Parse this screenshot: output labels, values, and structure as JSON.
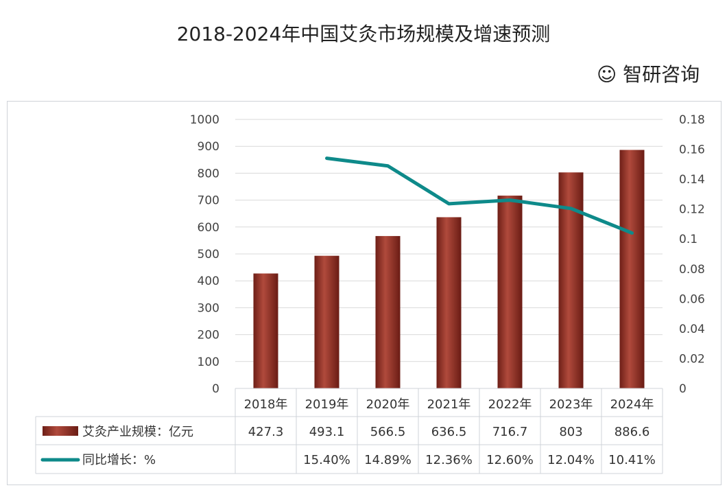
{
  "chart_data": {
    "type": "bar+line",
    "title": "2018-2024年中国艾灸市场规模及增速预测",
    "categories": [
      "2018年",
      "2019年",
      "2020年",
      "2021年",
      "2022年",
      "2023年",
      "2024年"
    ],
    "series": [
      {
        "name": "艾灸产业规模：亿元",
        "type": "bar",
        "axis": "left",
        "color": "#8b2e24",
        "values": [
          427.3,
          493.1,
          566.5,
          636.5,
          716.7,
          803,
          886.6
        ]
      },
      {
        "name": "同比增长：%",
        "type": "line",
        "axis": "right",
        "color": "#0e8a8a",
        "values": [
          null,
          0.154,
          0.1489,
          0.1236,
          0.126,
          0.1204,
          0.104
        ]
      }
    ],
    "left_axis": {
      "ylim": [
        0,
        1000
      ],
      "ticks": [
        "0",
        "100",
        "200",
        "300",
        "400",
        "500",
        "600",
        "700",
        "800",
        "900",
        "1000"
      ]
    },
    "right_axis": {
      "ylim": [
        0,
        0.18
      ],
      "ticks": [
        "0",
        "0.02",
        "0.04",
        "0.06",
        "0.08",
        "0.1",
        "0.12",
        "0.14",
        "0.16",
        "0.18"
      ]
    },
    "grid": true,
    "data_table": {
      "rows": [
        {
          "label": "艾灸产业规模：亿元",
          "cells": [
            "427.3",
            "493.1",
            "566.5",
            "636.5",
            "716.7",
            "803",
            "886.6"
          ]
        },
        {
          "label": "同比增长：%",
          "cells": [
            "",
            "15.40%",
            "14.89%",
            "12.36%",
            "12.60%",
            "12.04%",
            "10.41%"
          ]
        }
      ]
    }
  },
  "watermark": "智研咨询"
}
